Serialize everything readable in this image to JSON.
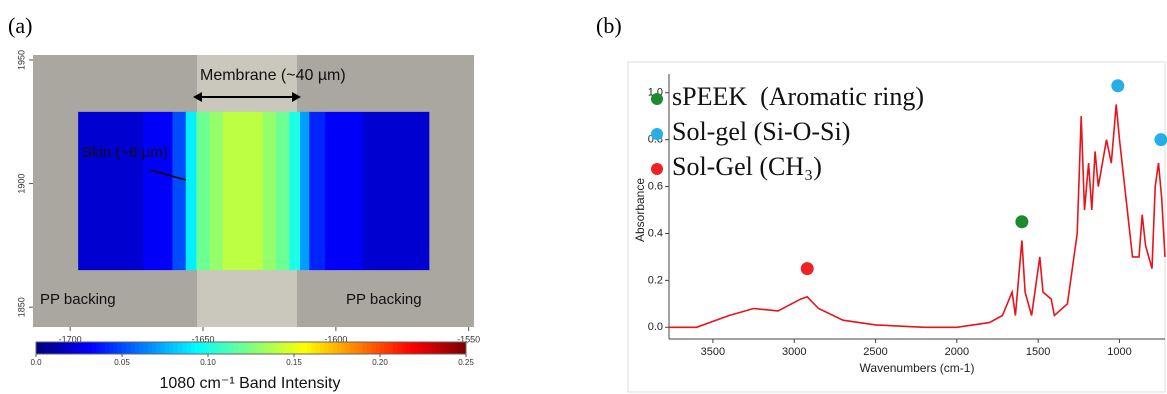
{
  "panels": [
    "(a)",
    "(b)"
  ],
  "chart_data": [
    {
      "type": "image-map",
      "xlim": [
        -1714,
        -1548
      ],
      "xticks": [
        -1700,
        -1650,
        -1600,
        -1550
      ],
      "ylim": [
        1842,
        1952
      ],
      "yticks": [
        1850,
        1900,
        1950
      ],
      "map_ylim": [
        1865,
        1929
      ],
      "x": [
        -1697,
        -1680,
        -1665,
        -1658,
        -1655,
        -1650,
        -1645,
        -1640,
        -1635,
        -1630,
        -1625,
        -1620,
        -1615,
        -1612,
        -1608,
        -1600,
        -1580,
        -1565
      ],
      "values": [
        0.02,
        0.02,
        0.03,
        0.05,
        0.09,
        0.12,
        0.13,
        0.14,
        0.14,
        0.14,
        0.13,
        0.12,
        0.1,
        0.07,
        0.04,
        0.03,
        0.02,
        0.02
      ],
      "annotations": [
        "Membrane (~40 µm)",
        "Skin (~6 µm)",
        "PP backing",
        "PP backing"
      ],
      "colorbar": {
        "label": "1080 cm⁻¹ Band Intensity",
        "colormap": "jet",
        "lim": [
          0,
          0.25
        ],
        "ticks": [
          {
            "value": 0,
            "label": "0.0"
          },
          0.05,
          {
            "value": 0.1,
            "label": "0.10"
          },
          0.15,
          {
            "value": 0.2,
            "label": "0.20"
          },
          0.25
        ]
      }
    },
    {
      "type": "line",
      "xlabel": "Wavenumbers (cm-1)",
      "ylabel": "Absorbance",
      "xlim": [
        3770,
        720
      ],
      "xticks": [
        3500,
        3000,
        2500,
        2000,
        1500,
        1000
      ],
      "ylim": [
        -0.05,
        1.08
      ],
      "yticks": [
        {
          "value": 0,
          "label": "0.0"
        },
        0.2,
        0.4,
        0.6,
        0.8,
        {
          "value": 1,
          "label": "1.0"
        }
      ],
      "x": [
        3770,
        3600,
        3400,
        3250,
        3100,
        2960,
        2920,
        2850,
        2700,
        2500,
        2200,
        2000,
        1800,
        1720,
        1660,
        1640,
        1600,
        1580,
        1540,
        1490,
        1470,
        1420,
        1400,
        1320,
        1260,
        1235,
        1215,
        1190,
        1170,
        1150,
        1130,
        1080,
        1050,
        1020,
        1000,
        960,
        920,
        880,
        860,
        840,
        800,
        780,
        760,
        740,
        720
      ],
      "series": [
        {
          "color": "#e8131b",
          "values": [
            0.0,
            0.0,
            0.05,
            0.08,
            0.07,
            0.12,
            0.13,
            0.08,
            0.03,
            0.01,
            0.0,
            0.0,
            0.02,
            0.05,
            0.15,
            0.05,
            0.37,
            0.15,
            0.05,
            0.3,
            0.15,
            0.12,
            0.05,
            0.1,
            0.4,
            0.9,
            0.5,
            0.7,
            0.5,
            0.75,
            0.6,
            0.8,
            0.7,
            0.95,
            0.8,
            0.55,
            0.3,
            0.3,
            0.48,
            0.35,
            0.25,
            0.6,
            0.7,
            0.55,
            0.3
          ]
        }
      ],
      "markers": [
        {
          "name": "sPEEK  (Aromatic ring)",
          "color": "#1e8a2e",
          "x": [
            1600
          ],
          "values": [
            0.45
          ]
        },
        {
          "name": "Sol-gel (Si-O-Si)",
          "color": "#27aee8",
          "x": [
            1010,
            745
          ],
          "values": [
            1.03,
            0.8
          ]
        },
        {
          "name": "Sol-Gel (CH₃)",
          "color": "#ee2222",
          "x": [
            2920
          ],
          "values": [
            0.25
          ]
        }
      ]
    }
  ]
}
